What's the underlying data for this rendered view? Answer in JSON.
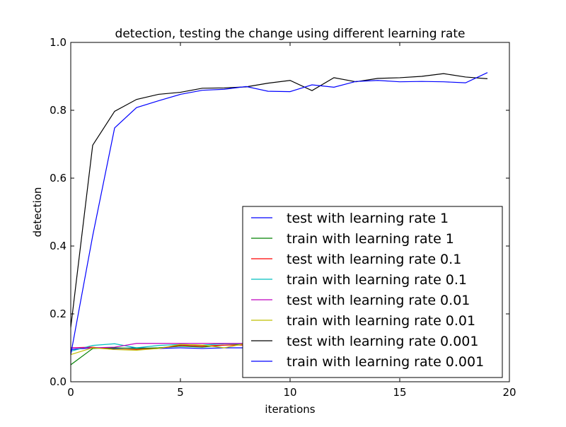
{
  "chart_data": {
    "type": "line",
    "title": "detection, testing the change using different learning rate",
    "xlabel": "iterations",
    "ylabel": "detection",
    "xlim": [
      0,
      20
    ],
    "ylim": [
      0.0,
      1.0
    ],
    "xticks": [
      0,
      5,
      10,
      15,
      20
    ],
    "yticks": [
      0.0,
      0.2,
      0.4,
      0.6,
      0.8,
      1.0
    ],
    "xtick_labels": [
      "0",
      "5",
      "10",
      "15",
      "20"
    ],
    "ytick_labels": [
      "0.0",
      "0.2",
      "0.4",
      "0.6",
      "0.8",
      "1.0"
    ],
    "grid": false,
    "legend_position": "lower-right",
    "x": [
      0,
      1,
      2,
      3,
      4,
      5,
      6,
      7,
      8,
      9,
      10,
      11,
      12,
      13,
      14,
      15,
      16,
      17,
      18,
      19
    ],
    "series": [
      {
        "name": "test with learning rate 1",
        "color": "#0000ff",
        "values": [
          0.095,
          0.1,
          0.098,
          0.1,
          0.098,
          0.1,
          0.098,
          0.1,
          0.1,
          0.098,
          0.1,
          0.1,
          0.1,
          0.1,
          0.1,
          0.1,
          0.1,
          0.1,
          0.1,
          0.1
        ]
      },
      {
        "name": "train with learning rate 1",
        "color": "#008000",
        "values": [
          0.05,
          0.098,
          0.1,
          0.098,
          0.1,
          0.105,
          0.102,
          0.108,
          0.11,
          0.105,
          0.105,
          0.105,
          0.105,
          0.105,
          0.105,
          0.105,
          0.105,
          0.105,
          0.105,
          0.105
        ]
      },
      {
        "name": "test with learning rate 0.1",
        "color": "#ff0000",
        "values": [
          0.1,
          0.102,
          0.095,
          0.095,
          0.098,
          0.108,
          0.105,
          0.108,
          0.108,
          0.108,
          0.108,
          0.108,
          0.108,
          0.108,
          0.108,
          0.108,
          0.108,
          0.108,
          0.108,
          0.108
        ]
      },
      {
        "name": "train with learning rate 0.1",
        "color": "#00bfbf",
        "values": [
          0.09,
          0.107,
          0.112,
          0.1,
          0.107,
          0.11,
          0.108,
          0.112,
          0.112,
          0.11,
          0.11,
          0.11,
          0.11,
          0.11,
          0.11,
          0.11,
          0.11,
          0.11,
          0.11,
          0.11
        ]
      },
      {
        "name": "test with learning rate 0.01",
        "color": "#bf00bf",
        "values": [
          0.1,
          0.1,
          0.102,
          0.113,
          0.113,
          0.113,
          0.113,
          0.113,
          0.113,
          0.113,
          0.113,
          0.113,
          0.113,
          0.113,
          0.113,
          0.113,
          0.113,
          0.113,
          0.113,
          0.113
        ]
      },
      {
        "name": "train with learning rate 0.01",
        "color": "#bfbf00",
        "values": [
          0.08,
          0.1,
          0.095,
          0.093,
          0.098,
          0.11,
          0.108,
          0.1,
          0.113,
          0.112,
          0.112,
          0.112,
          0.112,
          0.112,
          0.112,
          0.112,
          0.112,
          0.112,
          0.112,
          0.112
        ]
      },
      {
        "name": "test with learning rate 0.001",
        "color": "#000000",
        "values": [
          0.16,
          0.697,
          0.797,
          0.832,
          0.847,
          0.853,
          0.865,
          0.866,
          0.869,
          0.88,
          0.888,
          0.858,
          0.896,
          0.884,
          0.894,
          0.896,
          0.9,
          0.908,
          0.898,
          0.893
        ]
      },
      {
        "name": "train with learning rate 0.001",
        "color": "#0000ff",
        "values": [
          0.08,
          0.43,
          0.748,
          0.808,
          0.828,
          0.847,
          0.859,
          0.862,
          0.87,
          0.856,
          0.855,
          0.875,
          0.868,
          0.885,
          0.888,
          0.884,
          0.885,
          0.884,
          0.881,
          0.911
        ]
      }
    ]
  }
}
